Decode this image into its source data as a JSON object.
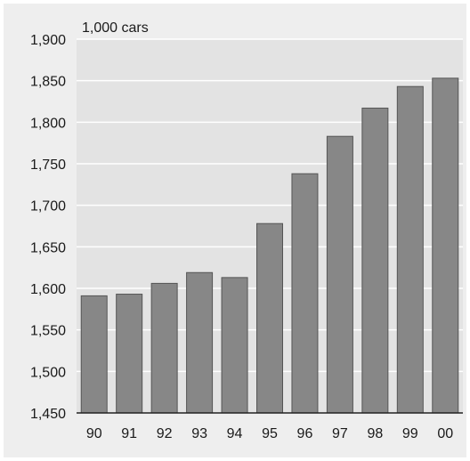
{
  "chart_data": {
    "type": "bar",
    "unit_label": "1,000 cars",
    "categories": [
      "90",
      "91",
      "92",
      "93",
      "94",
      "95",
      "96",
      "97",
      "98",
      "99",
      "00"
    ],
    "values": [
      1591,
      1593,
      1606,
      1619,
      1613,
      1678,
      1738,
      1783,
      1817,
      1843,
      1853
    ],
    "ylim": [
      1450,
      1900
    ],
    "yticks": [
      "1,450",
      "1,500",
      "1,550",
      "1,600",
      "1,650",
      "1,700",
      "1,750",
      "1,800",
      "1,850",
      "1,900"
    ],
    "ytick_values": [
      1450,
      1500,
      1550,
      1600,
      1650,
      1700,
      1750,
      1800,
      1850,
      1900
    ],
    "grid": true,
    "legend": "none",
    "colors": {
      "bar": "#878787",
      "bar_edge": "#555555",
      "plot_bg": "#e3e3e3",
      "outer_bg": "#eeeeee",
      "grid": "#ffffff",
      "axis": "#222222"
    }
  }
}
